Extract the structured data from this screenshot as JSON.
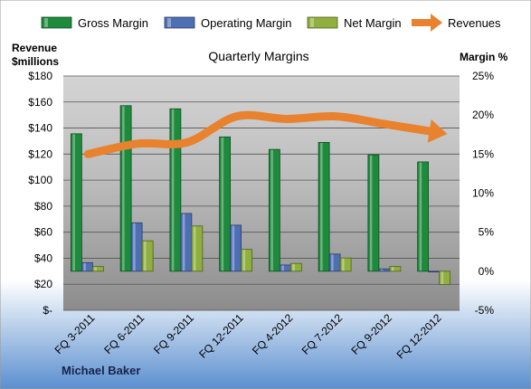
{
  "chart_data": {
    "type": "bar",
    "title": "Quarterly Margins",
    "left_axis_title": [
      "Revenue",
      "$millions"
    ],
    "right_axis_title": "Margin %",
    "categories": [
      "FQ 3-2011",
      "FQ 6-2011",
      "FQ 9-2011",
      "FQ 12-2011",
      "FQ 4-2012",
      "FQ 7-2012",
      "FQ 9-2012",
      "FQ 12-2012"
    ],
    "series": [
      {
        "name": "Gross Margin",
        "axis": "right",
        "color": "#1e8a3c",
        "values": [
          17.6,
          21.2,
          20.8,
          17.2,
          15.6,
          16.5,
          14.9,
          14.0
        ]
      },
      {
        "name": "Operating Margin",
        "axis": "right",
        "color": "#4f6fb4",
        "values": [
          1.1,
          6.2,
          7.4,
          5.9,
          0.8,
          2.2,
          0.3,
          0.0
        ]
      },
      {
        "name": "Net Margin",
        "axis": "right",
        "color": "#8faf3e",
        "values": [
          0.6,
          3.9,
          5.8,
          2.8,
          1.0,
          1.7,
          0.6,
          -1.7
        ]
      },
      {
        "name": "Revenues",
        "axis": "left",
        "color": "#e8822e",
        "values": [
          120,
          128,
          129,
          149,
          147,
          149,
          143,
          137
        ]
      }
    ],
    "left_axis": {
      "min": 0,
      "max": 180,
      "step": 20,
      "tick_labels": [
        "$-",
        "$20",
        "$40",
        "$60",
        "$80",
        "$100",
        "$120",
        "$140",
        "$160",
        "$180"
      ]
    },
    "right_axis": {
      "min": -5,
      "max": 25,
      "step": 5,
      "tick_labels": [
        "-5%",
        "0%",
        "5%",
        "10%",
        "15%",
        "20%",
        "25%"
      ]
    },
    "gridlines": true,
    "legend_position": "top",
    "author": "Michael Baker"
  }
}
